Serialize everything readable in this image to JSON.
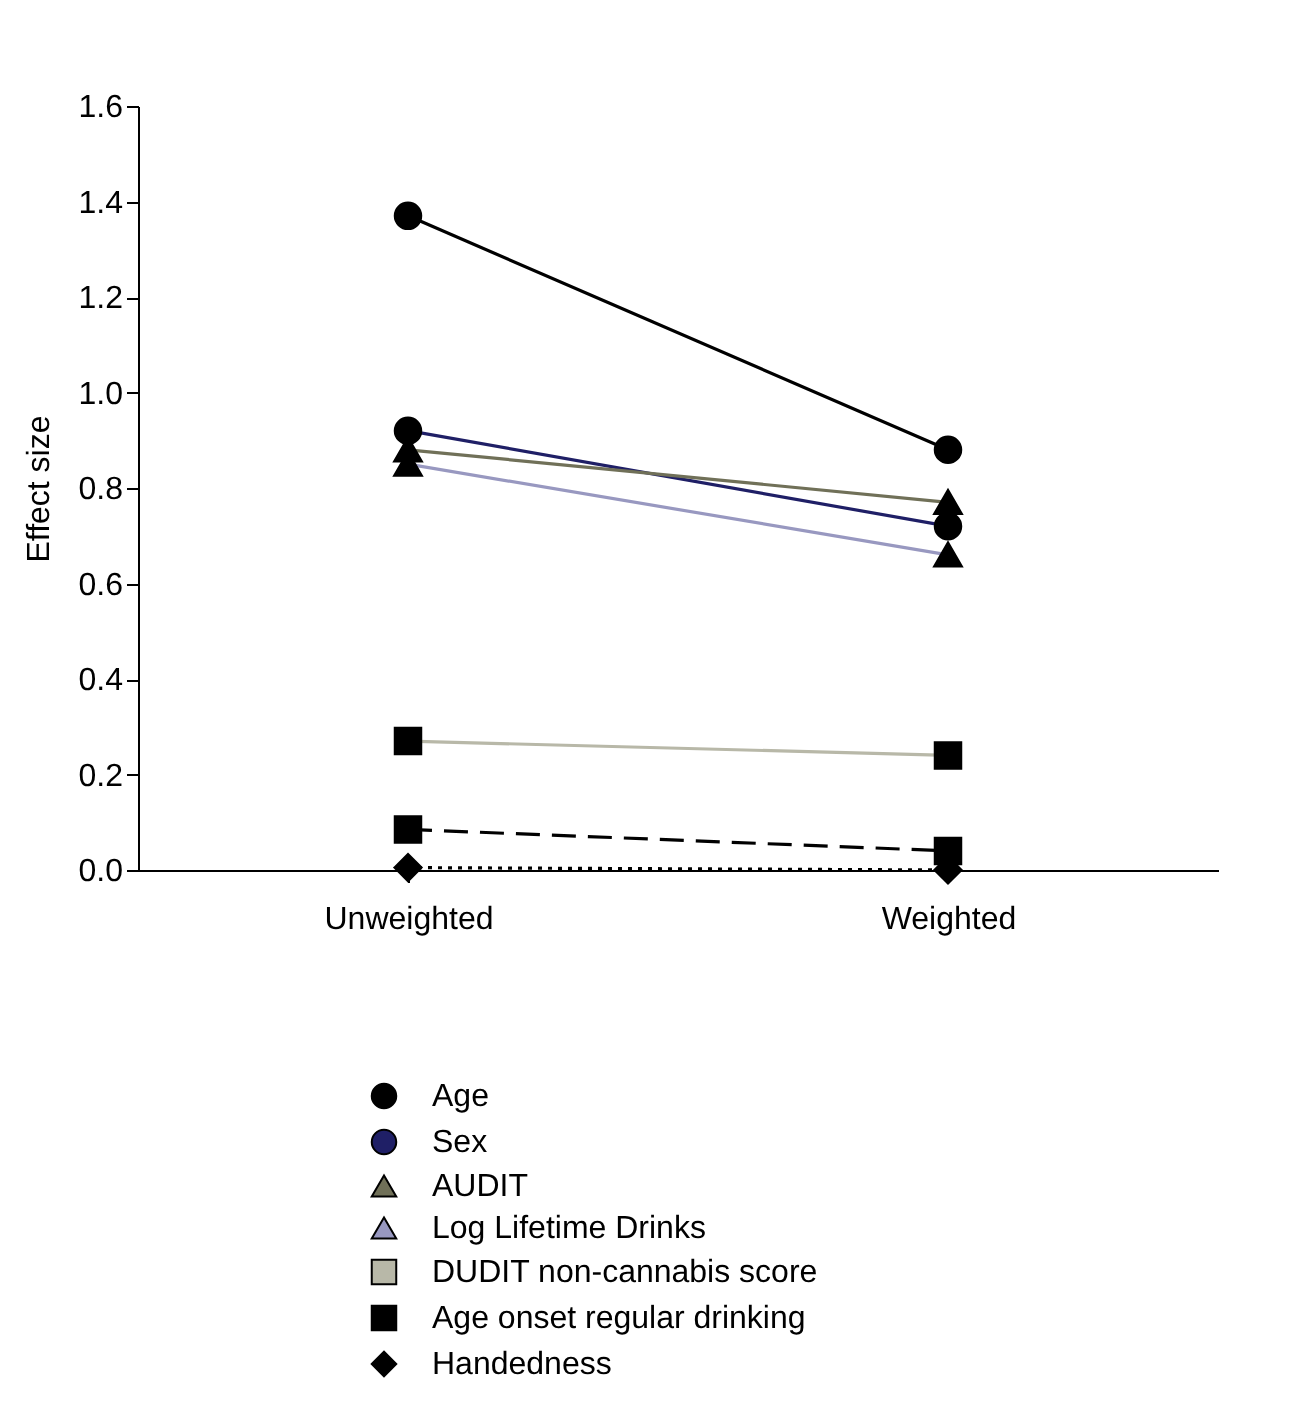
{
  "chart_data": {
    "type": "line",
    "ylabel": "Effect size",
    "categories": [
      "Unweighted",
      "Weighted"
    ],
    "ylim": [
      0,
      1.6
    ],
    "yticks": [
      {
        "value": 0,
        "label": "0.0"
      },
      {
        "value": 0.2,
        "label": "0.2"
      },
      {
        "value": 0.4,
        "label": "0.4"
      },
      {
        "value": 0.6,
        "label": "0.6"
      },
      {
        "value": 0.8,
        "label": "0.8"
      },
      {
        "value": 1,
        "label": "1.0"
      },
      {
        "value": 1.2,
        "label": "1.2"
      },
      {
        "value": 1.4,
        "label": "1.4"
      },
      {
        "value": 1.6,
        "label": "1.6"
      }
    ],
    "grid": false,
    "legend": "bottom",
    "series": [
      {
        "name": "Age",
        "color": "#000000",
        "marker": "circle",
        "line_style": "solid",
        "values": [
          1.37,
          0.88
        ]
      },
      {
        "name": "Sex",
        "color": "#1f1f66",
        "marker": "circle",
        "line_style": "solid",
        "values": [
          0.92,
          0.72
        ]
      },
      {
        "name": "AUDIT",
        "color": "#707058",
        "marker": "triangle",
        "line_style": "solid",
        "values": [
          0.88,
          0.77
        ]
      },
      {
        "name": "Log Lifetime Drinks",
        "color": "#9898c0",
        "marker": "triangle",
        "line_style": "solid",
        "values": [
          0.85,
          0.66
        ]
      },
      {
        "name": "DUDIT non-cannabis score",
        "color": "#b8b8a8",
        "marker": "square",
        "line_style": "solid",
        "values": [
          0.27,
          0.24
        ]
      },
      {
        "name": "Age onset regular drinking",
        "color": "#000000",
        "marker": "square",
        "line_style": "dashed",
        "values": [
          0.085,
          0.04
        ]
      },
      {
        "name": "Handedness",
        "color": "#000000",
        "marker": "diamond",
        "line_style": "dotted",
        "values": [
          0.005,
          0.0
        ]
      }
    ]
  }
}
